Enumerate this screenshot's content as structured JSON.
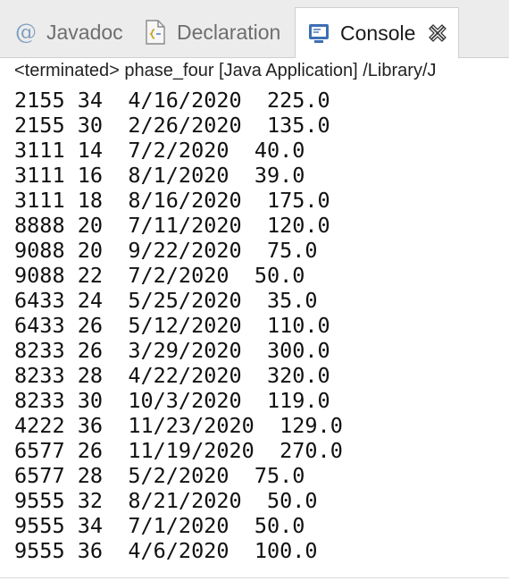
{
  "tabs": {
    "javadoc_label": "Javadoc",
    "declaration_label": "Declaration",
    "console_label": "Console"
  },
  "status_line": "<terminated> phase_four [Java Application] /Library/J",
  "output_lines": [
    "2155 34  4/16/2020  225.0",
    "2155 30  2/26/2020  135.0",
    "3111 14  7/2/2020  40.0",
    "3111 16  8/1/2020  39.0",
    "3111 18  8/16/2020  175.0",
    "8888 20  7/11/2020  120.0",
    "9088 20  9/22/2020  75.0",
    "9088 22  7/2/2020  50.0",
    "6433 24  5/25/2020  35.0",
    "6433 26  5/12/2020  110.0",
    "8233 26  3/29/2020  300.0",
    "8233 28  4/22/2020  320.0",
    "8233 30  10/3/2020  119.0",
    "4222 36  11/23/2020  129.0",
    "6577 26  11/19/2020  270.0",
    "6577 28  5/2/2020  75.0",
    "9555 32  8/21/2020  50.0",
    "9555 34  7/1/2020  50.0",
    "9555 36  4/6/2020  100.0"
  ],
  "icons": {
    "javadoc": "at-icon",
    "declaration": "declaration-icon",
    "console": "console-icon",
    "close": "close-icon"
  },
  "colors": {
    "tabbar_bg": "#ececec",
    "console_icon_blue": "#3d6fb3",
    "inactive_text": "#6e6e6e"
  }
}
